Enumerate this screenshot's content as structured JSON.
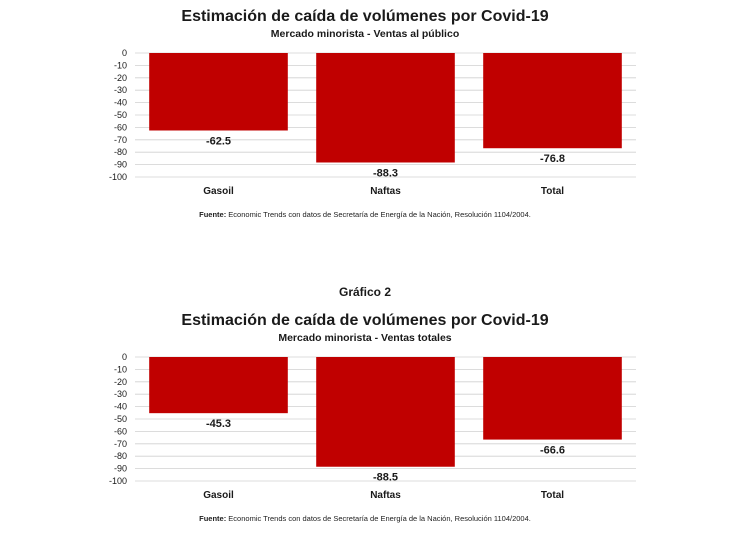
{
  "grafico2_label": "Gráfico 2",
  "colors": {
    "bar": "#c00000",
    "grid": "#d0d0d0",
    "text": "#1a1a1a"
  },
  "chart_data": [
    {
      "type": "bar",
      "title": "Estimación de caída de volúmenes por Covid-19",
      "subtitle": "Mercado minorista - Ventas al público",
      "categories": [
        "Gasoil",
        "Naftas",
        "Total"
      ],
      "values": [
        -62.5,
        -88.3,
        -76.8
      ],
      "data_labels": [
        "-62.5",
        "-88.3",
        "-76.8"
      ],
      "yticks": [
        0,
        -10,
        -20,
        -30,
        -40,
        -50,
        -60,
        -70,
        -80,
        -90,
        -100
      ],
      "ylim": [
        -100,
        0
      ],
      "grid": true,
      "source_label": "Fuente:",
      "source_text": " Economic Trends con datos de Secretaría de Energía de la Nación, Resolución 1104/2004."
    },
    {
      "type": "bar",
      "title": "Estimación de caída de volúmenes por Covid-19",
      "subtitle": "Mercado minorista - Ventas totales",
      "categories": [
        "Gasoil",
        "Naftas",
        "Total"
      ],
      "values": [
        -45.3,
        -88.5,
        -66.6
      ],
      "data_labels": [
        "-45.3",
        "-88.5",
        "-66.6"
      ],
      "yticks": [
        0,
        -10,
        -20,
        -30,
        -40,
        -50,
        -60,
        -70,
        -80,
        -90,
        -100
      ],
      "ylim": [
        -100,
        0
      ],
      "grid": true,
      "source_label": "Fuente:",
      "source_text": " Economic Trends con datos de Secretaría de Energía de la Nación, Resolución 1104/2004."
    }
  ]
}
